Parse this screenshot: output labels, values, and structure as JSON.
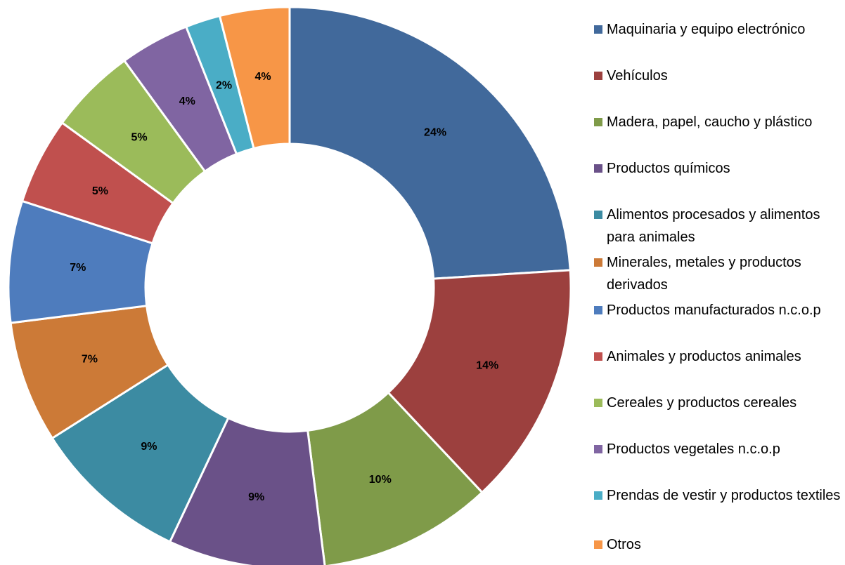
{
  "chart_data": {
    "type": "pie",
    "categories": [
      "Maquinaria y equipo electrónico",
      "Vehículos",
      "Madera, papel, caucho y plástico",
      "Productos químicos",
      "Alimentos procesados y alimentos para animales",
      "Minerales, metales y productos derivados",
      "Productos manufacturados n.c.o.p",
      "Animales y productos animales",
      "Cereales y productos cereales",
      "Productos vegetales n.c.o.p",
      "Prendas de vestir y productos textiles",
      "Otros"
    ],
    "values": [
      24,
      14,
      10,
      9,
      9,
      7,
      7,
      5,
      5,
      4,
      2,
      4
    ],
    "value_labels": [
      "24%",
      "14%",
      "10%",
      "9%",
      "9%",
      "7%",
      "7%",
      "5%",
      "5%",
      "4%",
      "2%",
      "4%"
    ],
    "colors": [
      "#41699b",
      "#9c403e",
      "#7f9b49",
      "#6a5188",
      "#3c8ba2",
      "#cc7a37",
      "#4e7cbd",
      "#c0504e",
      "#9bbb5a",
      "#8065a2",
      "#4aadc6",
      "#f79647"
    ],
    "legend": "right"
  }
}
